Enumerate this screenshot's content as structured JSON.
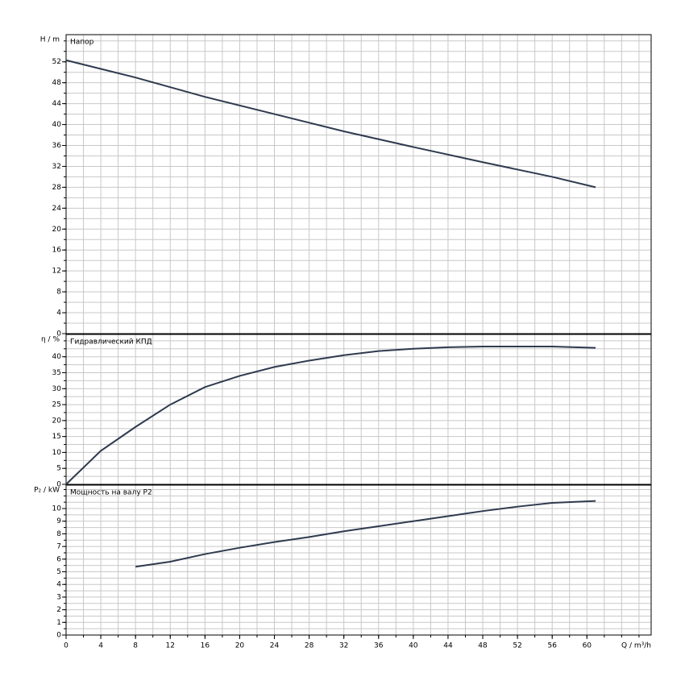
{
  "chart_data": [
    {
      "type": "line",
      "title": "Напор",
      "ylabel": "H / m",
      "ylim": [
        0,
        57.2
      ],
      "yticks": [
        0,
        4,
        8,
        12,
        16,
        20,
        24,
        28,
        32,
        36,
        40,
        44,
        48,
        52
      ],
      "ygrid": [
        2,
        4,
        6,
        8,
        10,
        12,
        14,
        16,
        18,
        20,
        22,
        24,
        26,
        28,
        30,
        32,
        34,
        36,
        38,
        40,
        42,
        44,
        46,
        48,
        50,
        52,
        54,
        56
      ],
      "series": [
        {
          "color": "#2f3a4f",
          "x": [
            0,
            8,
            16,
            24,
            32,
            40,
            48,
            56,
            61
          ],
          "values": [
            52.3,
            49,
            45.3,
            42,
            38.7,
            35.7,
            32.8,
            30,
            28
          ]
        }
      ]
    },
    {
      "type": "line",
      "title": "Гидравлический КПД",
      "ylabel": "η / %",
      "ylim": [
        0,
        47
      ],
      "yticks": [
        0,
        5,
        10,
        15,
        20,
        25,
        30,
        35,
        40
      ],
      "ygrid": [
        2.5,
        5,
        7.5,
        10,
        12.5,
        15,
        17.5,
        20,
        22.5,
        25,
        27.5,
        30,
        32.5,
        35,
        37.5,
        40,
        42.5,
        45
      ],
      "series": [
        {
          "color": "#2f3a4f",
          "x": [
            0,
            4,
            8,
            12,
            16,
            20,
            24,
            28,
            32,
            36,
            40,
            44,
            48,
            52,
            56,
            61
          ],
          "values": [
            0,
            10.5,
            18,
            25,
            30.5,
            34,
            36.8,
            38.8,
            40.5,
            41.8,
            42.5,
            43,
            43.2,
            43.2,
            43.2,
            42.8
          ]
        }
      ]
    },
    {
      "type": "line",
      "title": "Мощность на валу P2",
      "ylabel": "P₂ / kW",
      "ylim": [
        0,
        11.85
      ],
      "yticks": [
        0,
        1,
        2,
        3,
        4,
        5,
        6,
        7,
        8,
        9,
        10
      ],
      "ygrid": [
        0.5,
        1,
        1.5,
        2,
        2.5,
        3,
        3.5,
        4,
        4.5,
        5,
        5.5,
        6,
        6.5,
        7,
        7.5,
        8,
        8.5,
        9,
        9.5,
        10,
        10.5,
        11,
        11.5
      ],
      "series": [
        {
          "color": "#2f3a4f",
          "x": [
            8,
            12,
            16,
            20,
            24,
            28,
            32,
            36,
            40,
            44,
            48,
            52,
            56,
            61
          ],
          "values": [
            5.4,
            5.8,
            6.4,
            6.9,
            7.35,
            7.75,
            8.2,
            8.6,
            9.0,
            9.4,
            9.8,
            10.15,
            10.45,
            10.6
          ]
        }
      ],
      "xlabel": "Q / m³/h",
      "xlim": [
        0,
        67.4
      ],
      "xticks": [
        0,
        4,
        8,
        12,
        16,
        20,
        24,
        28,
        32,
        36,
        40,
        44,
        48,
        52,
        56,
        60
      ],
      "xgrid": [
        2,
        4,
        6,
        8,
        10,
        12,
        14,
        16,
        18,
        20,
        22,
        24,
        26,
        28,
        30,
        32,
        34,
        36,
        38,
        40,
        42,
        44,
        46,
        48,
        50,
        52,
        54,
        56,
        58,
        60,
        62,
        64,
        66
      ]
    }
  ]
}
